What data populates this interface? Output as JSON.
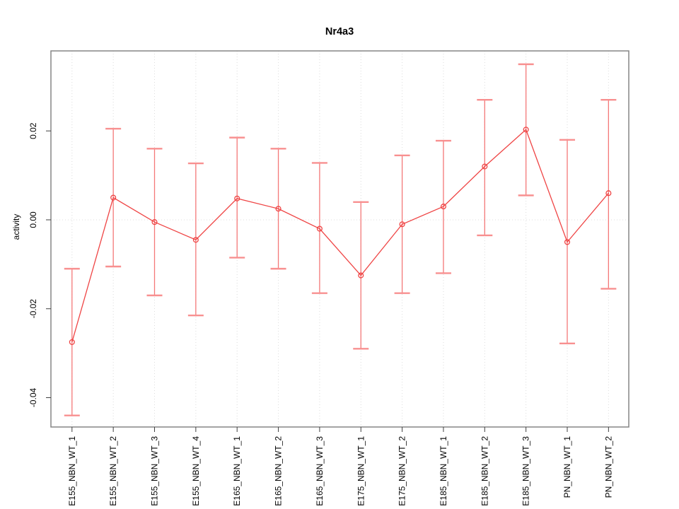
{
  "figure": {
    "title": "Nr4a3",
    "ylabel": "activity"
  },
  "chart_data": {
    "type": "line",
    "title": "Nr4a3",
    "xlabel": "",
    "ylabel": "activity",
    "legend_position": "none",
    "categories": [
      "E155_NBN_WT_1",
      "E155_NBN_WT_2",
      "E155_NBN_WT_3",
      "E155_NBN_WT_4",
      "E165_NBN_WT_1",
      "E165_NBN_WT_2",
      "E165_NBN_WT_3",
      "E175_NBN_WT_1",
      "E175_NBN_WT_2",
      "E185_NBN_WT_1",
      "E185_NBN_WT_2",
      "E185_NBN_WT_3",
      "PN_NBN_WT_1",
      "PN_NBN_WT_2"
    ],
    "series": [
      {
        "name": "activity",
        "values": [
          -0.0275,
          0.005,
          -0.0005,
          -0.0045,
          0.0048,
          0.0025,
          -0.002,
          -0.0125,
          -0.001,
          0.003,
          0.012,
          0.0203,
          -0.005,
          0.006
        ],
        "error_low": [
          -0.044,
          -0.0105,
          -0.017,
          -0.0215,
          -0.0085,
          -0.011,
          -0.0165,
          -0.029,
          -0.0165,
          -0.012,
          -0.0035,
          0.0055,
          -0.0278,
          -0.0155
        ],
        "error_high": [
          -0.011,
          0.0205,
          0.016,
          0.0127,
          0.0185,
          0.016,
          0.0128,
          0.004,
          0.0145,
          0.0178,
          0.027,
          0.035,
          0.018,
          0.027
        ]
      }
    ],
    "yticks": [
      0.02,
      0,
      -0.02,
      -0.04
    ],
    "ytick_labels": [
      "0.02",
      "0.00",
      "-0.02",
      "-0.04"
    ],
    "ylim": [
      -0.0466,
      0.038
    ],
    "grid": {
      "vertical_at_categories": true,
      "horizontal_at_zero": true,
      "style": "dotted"
    },
    "marker": "open-circle",
    "colors": {
      "series_line": "#ef4545",
      "marker": "#ef4545",
      "error_bar": "#f47878",
      "error_cap": "#f89090",
      "gridline": "#dcdcdc",
      "panel_border": "#858585",
      "tick": "#404040",
      "text": "#000000",
      "background": "#ffffff"
    }
  }
}
